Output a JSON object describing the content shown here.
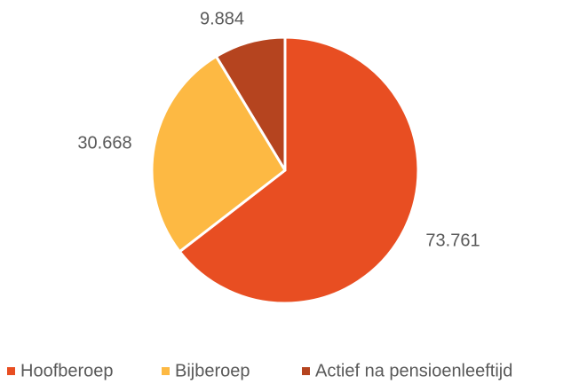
{
  "chart_data": {
    "type": "pie",
    "categories": [
      "Hoofberoep",
      "Bijberoep",
      "Actief na pensioenleeftijd"
    ],
    "values": [
      73761,
      30668,
      9884
    ],
    "value_labels": [
      "73.761",
      "30.668",
      "9.884"
    ],
    "colors": [
      "#e84e22",
      "#fdb943",
      "#b5441f"
    ],
    "legend": "bottom"
  }
}
